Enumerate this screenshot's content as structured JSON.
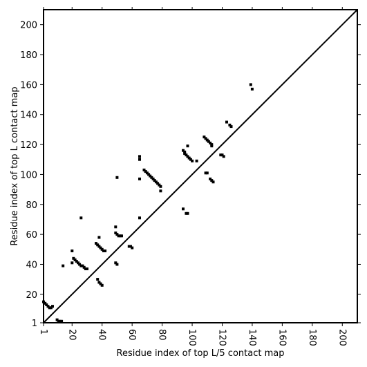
{
  "chart_data": {
    "type": "scatter",
    "title": "",
    "xlabel": "Residue index of top L/5 contact map",
    "ylabel": "Residue index of top L contact map",
    "xlim": [
      1,
      210
    ],
    "ylim": [
      1,
      210
    ],
    "xticks": [
      1,
      20,
      40,
      60,
      80,
      100,
      120,
      140,
      160,
      180,
      200
    ],
    "yticks": [
      1,
      20,
      40,
      60,
      80,
      100,
      120,
      140,
      160,
      180,
      200
    ],
    "xtick_labels": [
      "1",
      "20",
      "40",
      "60",
      "80",
      "100",
      "120",
      "140",
      "160",
      "180",
      "200"
    ],
    "ytick_labels": [
      "1",
      "20",
      "40",
      "60",
      "80",
      "100",
      "120",
      "140",
      "160",
      "180",
      "200"
    ],
    "grid": false,
    "diagonal": true,
    "marker_color": "#000000",
    "series": [
      {
        "points_upper_top_L": [
          [
            94,
            116
          ],
          [
            95,
            115
          ],
          [
            95,
            114
          ],
          [
            96,
            113
          ],
          [
            97,
            112
          ],
          [
            98,
            111
          ],
          [
            99,
            110
          ],
          [
            100,
            109
          ],
          [
            97,
            119
          ],
          [
            103,
            109
          ],
          [
            108,
            125
          ],
          [
            109,
            124
          ],
          [
            110,
            123
          ],
          [
            111,
            122
          ],
          [
            112,
            121
          ],
          [
            113,
            120
          ],
          [
            113,
            119
          ],
          [
            119,
            113
          ],
          [
            120,
            113
          ],
          [
            121,
            112
          ],
          [
            123,
            135
          ],
          [
            125,
            133
          ],
          [
            126,
            132
          ],
          [
            139,
            160
          ],
          [
            140,
            157
          ],
          [
            68,
            103
          ],
          [
            69,
            102
          ],
          [
            70,
            101
          ],
          [
            71,
            100
          ],
          [
            72,
            99
          ],
          [
            73,
            98
          ],
          [
            74,
            97
          ],
          [
            75,
            96
          ],
          [
            76,
            95
          ],
          [
            77,
            94
          ],
          [
            78,
            93
          ],
          [
            79,
            92
          ],
          [
            79,
            89
          ],
          [
            50,
            98
          ],
          [
            65,
            112
          ],
          [
            65,
            110
          ],
          [
            65,
            97
          ],
          [
            49,
            61
          ],
          [
            50,
            60
          ],
          [
            51,
            59
          ],
          [
            52,
            59
          ],
          [
            53,
            59
          ]
        ]
      },
      {
        "points_lower_top_L5": [
          [
            1,
            15
          ],
          [
            2,
            14
          ],
          [
            3,
            13
          ],
          [
            4,
            12
          ],
          [
            5,
            11
          ],
          [
            6,
            11
          ],
          [
            7,
            12
          ],
          [
            10,
            3
          ],
          [
            11,
            2
          ],
          [
            12,
            2
          ],
          [
            13,
            2
          ],
          [
            14,
            39
          ],
          [
            20,
            49
          ],
          [
            21,
            44
          ],
          [
            22,
            43
          ],
          [
            23,
            42
          ],
          [
            24,
            41
          ],
          [
            25,
            40
          ],
          [
            26,
            39
          ],
          [
            27,
            39
          ],
          [
            28,
            38
          ],
          [
            29,
            37
          ],
          [
            30,
            37
          ],
          [
            20,
            41
          ],
          [
            26,
            71
          ],
          [
            36,
            54
          ],
          [
            37,
            53
          ],
          [
            38,
            52
          ],
          [
            39,
            51
          ],
          [
            40,
            50
          ],
          [
            41,
            49
          ],
          [
            42,
            49
          ],
          [
            38,
            58
          ],
          [
            37,
            30
          ],
          [
            38,
            28
          ],
          [
            39,
            27
          ],
          [
            40,
            26
          ],
          [
            49,
            41
          ],
          [
            50,
            40
          ],
          [
            49,
            65
          ],
          [
            58,
            52
          ],
          [
            59,
            52
          ],
          [
            60,
            51
          ],
          [
            65,
            71
          ],
          [
            94,
            77
          ],
          [
            96,
            74
          ],
          [
            97,
            74
          ],
          [
            109,
            101
          ],
          [
            110,
            101
          ],
          [
            112,
            97
          ],
          [
            113,
            96
          ],
          [
            114,
            95
          ]
        ]
      }
    ]
  }
}
